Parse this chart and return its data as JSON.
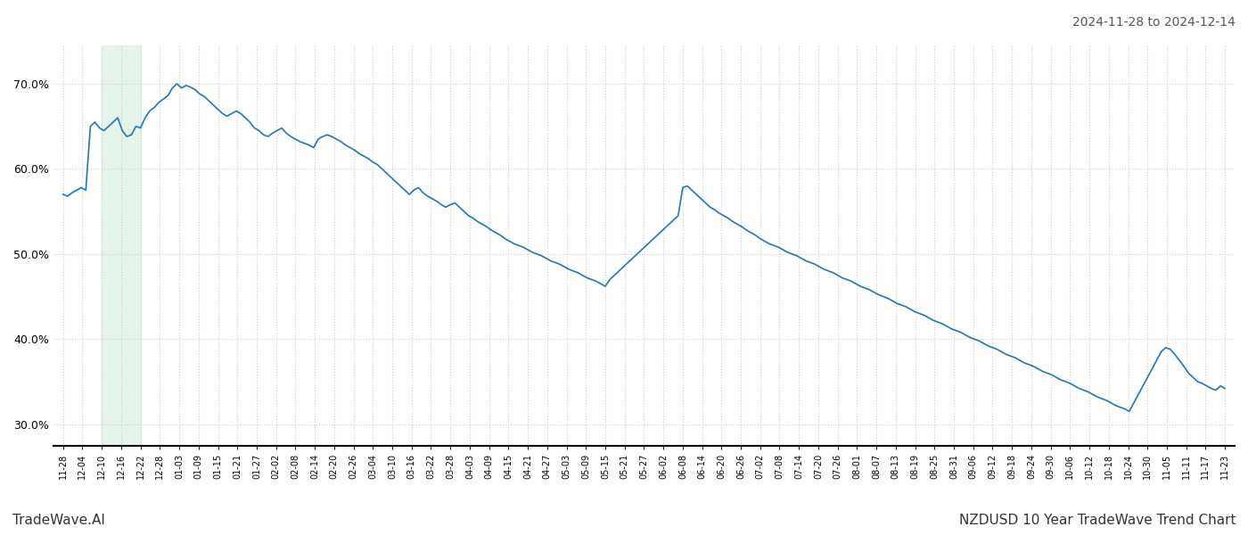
{
  "title_top_right": "2024-11-28 to 2024-12-14",
  "title_bottom_left": "TradeWave.AI",
  "title_bottom_right": "NZDUSD 10 Year TradeWave Trend Chart",
  "line_color": "#1f77b4",
  "line_width": 1.2,
  "shaded_region_color": "#d4edda",
  "shaded_region_alpha": 0.6,
  "background_color": "#ffffff",
  "grid_color": "#cccccc",
  "grid_style": ":",
  "ylim": [
    0.275,
    0.745
  ],
  "yticks": [
    0.3,
    0.4,
    0.5,
    0.6,
    0.7
  ],
  "xlabel_fontsize": 7,
  "x_labels": [
    "11-28",
    "12-04",
    "12-10",
    "12-16",
    "12-22",
    "12-28",
    "01-03",
    "01-09",
    "01-15",
    "01-21",
    "01-27",
    "02-02",
    "02-08",
    "02-14",
    "02-20",
    "02-26",
    "03-04",
    "03-10",
    "03-16",
    "03-22",
    "03-28",
    "04-03",
    "04-09",
    "04-15",
    "04-21",
    "04-27",
    "05-03",
    "05-09",
    "05-15",
    "05-21",
    "05-27",
    "06-02",
    "06-08",
    "06-14",
    "06-20",
    "06-26",
    "07-02",
    "07-08",
    "07-14",
    "07-20",
    "07-26",
    "08-01",
    "08-07",
    "08-13",
    "08-19",
    "08-25",
    "08-31",
    "09-06",
    "09-12",
    "09-18",
    "09-24",
    "09-30",
    "10-06",
    "10-12",
    "10-18",
    "10-24",
    "10-30",
    "11-05",
    "11-11",
    "11-17",
    "11-23"
  ],
  "shaded_x_start_label": "12-10",
  "shaded_x_end_label": "12-22",
  "values": [
    0.57,
    0.568,
    0.572,
    0.575,
    0.578,
    0.575,
    0.65,
    0.655,
    0.648,
    0.645,
    0.65,
    0.655,
    0.66,
    0.645,
    0.638,
    0.64,
    0.65,
    0.648,
    0.66,
    0.668,
    0.672,
    0.678,
    0.682,
    0.686,
    0.695,
    0.7,
    0.695,
    0.698,
    0.696,
    0.693,
    0.688,
    0.685,
    0.68,
    0.675,
    0.67,
    0.665,
    0.662,
    0.665,
    0.668,
    0.665,
    0.66,
    0.655,
    0.648,
    0.645,
    0.64,
    0.638,
    0.642,
    0.645,
    0.648,
    0.642,
    0.638,
    0.635,
    0.632,
    0.63,
    0.628,
    0.625,
    0.635,
    0.638,
    0.64,
    0.638,
    0.635,
    0.632,
    0.628,
    0.625,
    0.622,
    0.618,
    0.615,
    0.612,
    0.608,
    0.605,
    0.6,
    0.595,
    0.59,
    0.585,
    0.58,
    0.575,
    0.57,
    0.575,
    0.578,
    0.572,
    0.568,
    0.565,
    0.562,
    0.558,
    0.555,
    0.558,
    0.56,
    0.555,
    0.55,
    0.545,
    0.542,
    0.538,
    0.535,
    0.532,
    0.528,
    0.525,
    0.522,
    0.518,
    0.515,
    0.512,
    0.51,
    0.508,
    0.505,
    0.502,
    0.5,
    0.498,
    0.495,
    0.492,
    0.49,
    0.488,
    0.485,
    0.482,
    0.48,
    0.478,
    0.475,
    0.472,
    0.47,
    0.468,
    0.465,
    0.462,
    0.47,
    0.475,
    0.48,
    0.485,
    0.49,
    0.495,
    0.5,
    0.505,
    0.51,
    0.515,
    0.52,
    0.525,
    0.53,
    0.535,
    0.54,
    0.545,
    0.578,
    0.58,
    0.575,
    0.57,
    0.565,
    0.56,
    0.555,
    0.552,
    0.548,
    0.545,
    0.542,
    0.538,
    0.535,
    0.532,
    0.528,
    0.525,
    0.522,
    0.518,
    0.515,
    0.512,
    0.51,
    0.508,
    0.505,
    0.502,
    0.5,
    0.498,
    0.495,
    0.492,
    0.49,
    0.488,
    0.485,
    0.482,
    0.48,
    0.478,
    0.475,
    0.472,
    0.47,
    0.468,
    0.465,
    0.462,
    0.46,
    0.458,
    0.455,
    0.452,
    0.45,
    0.448,
    0.445,
    0.442,
    0.44,
    0.438,
    0.435,
    0.432,
    0.43,
    0.428,
    0.425,
    0.422,
    0.42,
    0.418,
    0.415,
    0.412,
    0.41,
    0.408,
    0.405,
    0.402,
    0.4,
    0.398,
    0.395,
    0.392,
    0.39,
    0.388,
    0.385,
    0.382,
    0.38,
    0.378,
    0.375,
    0.372,
    0.37,
    0.368,
    0.365,
    0.362,
    0.36,
    0.358,
    0.355,
    0.352,
    0.35,
    0.348,
    0.345,
    0.342,
    0.34,
    0.338,
    0.335,
    0.332,
    0.33,
    0.328,
    0.325,
    0.322,
    0.32,
    0.318,
    0.315,
    0.325,
    0.335,
    0.345,
    0.355,
    0.365,
    0.375,
    0.385,
    0.39,
    0.388,
    0.382,
    0.375,
    0.368,
    0.36,
    0.355,
    0.35,
    0.348,
    0.345,
    0.342,
    0.34,
    0.345,
    0.342
  ]
}
